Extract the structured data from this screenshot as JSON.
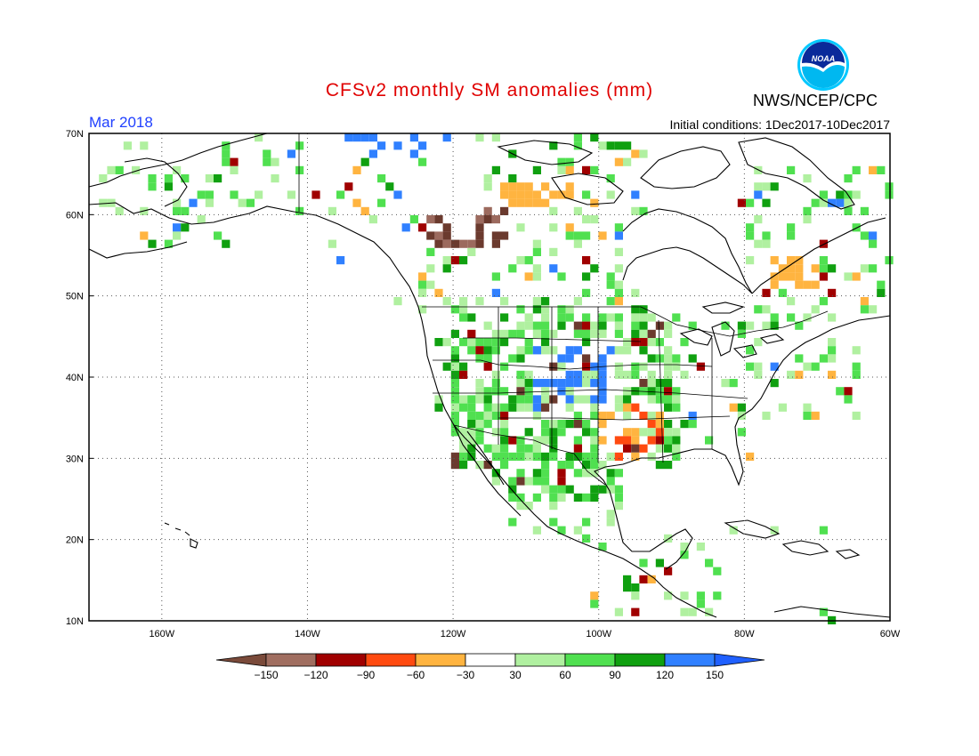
{
  "header": {
    "title": "CFSv2 monthly SM anomalies (mm)",
    "valid_month": "Mar 2018",
    "initial_conditions": "Initial conditions: 1Dec2017-10Dec2017",
    "agency": "NWS/NCEP/CPC",
    "logo_text": "NOAA"
  },
  "map": {
    "lat_labels": [
      "70N",
      "60N",
      "50N",
      "40N",
      "30N",
      "20N",
      "10N"
    ],
    "lon_labels": [
      "160W",
      "140W",
      "120W",
      "100W",
      "80W",
      "60W"
    ],
    "lat_range": [
      10,
      70
    ],
    "lon_range": [
      -170,
      -60
    ],
    "grid": "dotted"
  },
  "colorbar": {
    "tick_labels": [
      "-150",
      "-120",
      "-90",
      "-60",
      "-30",
      "30",
      "60",
      "90",
      "120",
      "150"
    ],
    "colors": [
      "#7a4a3a",
      "#a06e60",
      "#a00000",
      "#ff4a10",
      "#ffb440",
      "#ffffff",
      "#b0f0a0",
      "#50e050",
      "#10a010",
      "#3080ff",
      "#2060ff"
    ]
  },
  "anomaly_cells": {
    "comment_free": true,
    "colors": {
      "n150": "#6b3a2e",
      "n120": "#9c6a5e",
      "n90": "#a00000",
      "n60": "#ff4a10",
      "n30": "#ffb440",
      "p30": "#b0f0a0",
      "p60": "#50e050",
      "p90": "#10a010",
      "p120": "#3080ff"
    }
  }
}
